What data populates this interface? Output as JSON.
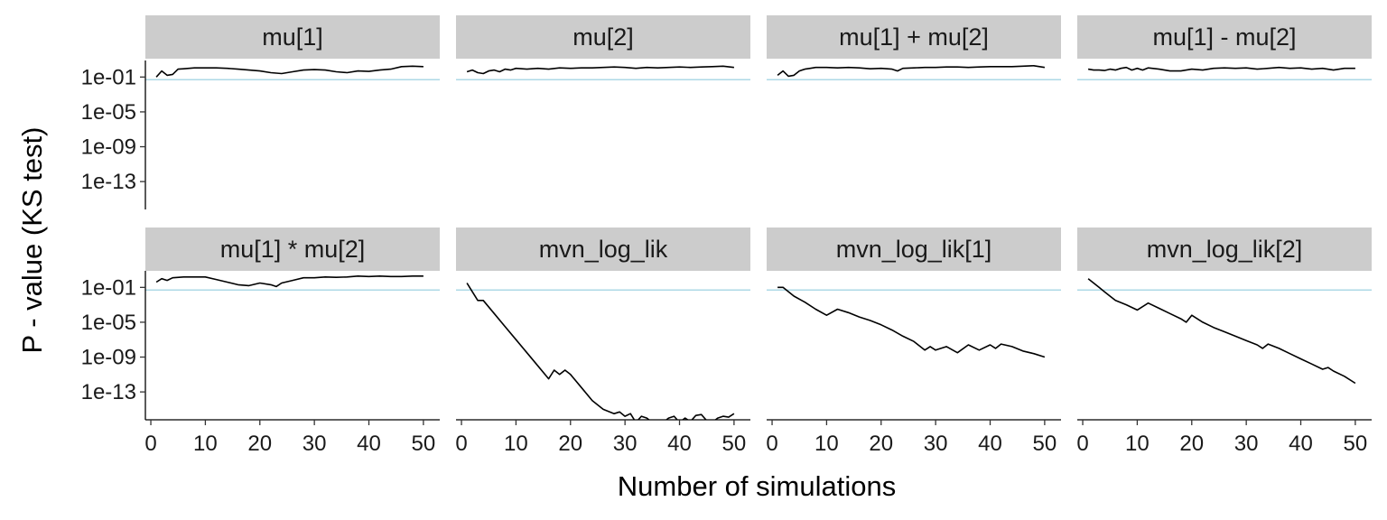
{
  "chart_data": {
    "type": "line",
    "xlabel": "Number of simulations",
    "ylabel": "P - value (KS test)",
    "y_scale": "log10",
    "ylim_log10": [
      -16.2,
      0.9
    ],
    "xlim": [
      -1,
      53
    ],
    "x_ticks": [
      0,
      10,
      20,
      30,
      40,
      50
    ],
    "x_tick_labels": [
      "0",
      "10",
      "20",
      "30",
      "40",
      "50"
    ],
    "y_ticks_log10": [
      -1,
      -5,
      -9,
      -13
    ],
    "y_tick_labels": [
      "1e-01",
      "1e-05",
      "1e-09",
      "1e-13"
    ],
    "reference_line": {
      "p_value": 0.05,
      "color": "#add8e6"
    },
    "line_color": "#000000",
    "strip_color": "#cccccc",
    "grid": false,
    "facets": [
      {
        "title": "mu[1]",
        "points": [
          [
            1,
            -1.0
          ],
          [
            2,
            -0.3
          ],
          [
            3,
            -0.8
          ],
          [
            4,
            -0.7
          ],
          [
            5,
            -0.1
          ],
          [
            6,
            -0.05
          ],
          [
            8,
            0.05
          ],
          [
            10,
            0.05
          ],
          [
            12,
            0.05
          ],
          [
            14,
            0.0
          ],
          [
            16,
            -0.1
          ],
          [
            18,
            -0.2
          ],
          [
            20,
            -0.3
          ],
          [
            22,
            -0.5
          ],
          [
            24,
            -0.6
          ],
          [
            26,
            -0.4
          ],
          [
            28,
            -0.2
          ],
          [
            30,
            -0.15
          ],
          [
            32,
            -0.2
          ],
          [
            34,
            -0.4
          ],
          [
            36,
            -0.5
          ],
          [
            38,
            -0.3
          ],
          [
            40,
            -0.35
          ],
          [
            42,
            -0.2
          ],
          [
            44,
            -0.1
          ],
          [
            46,
            0.2
          ],
          [
            48,
            0.25
          ],
          [
            50,
            0.2
          ]
        ]
      },
      {
        "title": "mu[2]",
        "points": [
          [
            1,
            -0.4
          ],
          [
            2,
            -0.2
          ],
          [
            3,
            -0.5
          ],
          [
            4,
            -0.6
          ],
          [
            5,
            -0.3
          ],
          [
            6,
            -0.2
          ],
          [
            7,
            -0.4
          ],
          [
            8,
            -0.1
          ],
          [
            9,
            -0.2
          ],
          [
            10,
            0.0
          ],
          [
            12,
            -0.1
          ],
          [
            14,
            0.0
          ],
          [
            16,
            -0.1
          ],
          [
            18,
            0.05
          ],
          [
            20,
            0.0
          ],
          [
            22,
            0.05
          ],
          [
            24,
            0.05
          ],
          [
            26,
            0.1
          ],
          [
            28,
            0.15
          ],
          [
            30,
            0.1
          ],
          [
            32,
            0.0
          ],
          [
            34,
            0.1
          ],
          [
            36,
            0.05
          ],
          [
            38,
            0.1
          ],
          [
            40,
            0.15
          ],
          [
            42,
            0.1
          ],
          [
            44,
            0.15
          ],
          [
            46,
            0.2
          ],
          [
            48,
            0.25
          ],
          [
            50,
            0.1
          ]
        ]
      },
      {
        "title": "mu[1] + mu[2]",
        "points": [
          [
            1,
            -0.8
          ],
          [
            2,
            -0.3
          ],
          [
            3,
            -0.9
          ],
          [
            4,
            -0.8
          ],
          [
            5,
            -0.3
          ],
          [
            6,
            -0.1
          ],
          [
            7,
            0.0
          ],
          [
            8,
            0.1
          ],
          [
            10,
            0.1
          ],
          [
            12,
            0.05
          ],
          [
            14,
            0.1
          ],
          [
            16,
            0.05
          ],
          [
            18,
            -0.05
          ],
          [
            20,
            0.0
          ],
          [
            22,
            -0.1
          ],
          [
            23,
            -0.3
          ],
          [
            24,
            0.0
          ],
          [
            26,
            0.05
          ],
          [
            28,
            0.1
          ],
          [
            30,
            0.1
          ],
          [
            32,
            0.15
          ],
          [
            34,
            0.15
          ],
          [
            36,
            0.1
          ],
          [
            38,
            0.15
          ],
          [
            40,
            0.2
          ],
          [
            42,
            0.2
          ],
          [
            44,
            0.2
          ],
          [
            46,
            0.25
          ],
          [
            48,
            0.3
          ],
          [
            50,
            0.1
          ]
        ]
      },
      {
        "title": "mu[1] - mu[2]",
        "points": [
          [
            1,
            -0.1
          ],
          [
            2,
            -0.2
          ],
          [
            3,
            -0.2
          ],
          [
            4,
            -0.25
          ],
          [
            5,
            -0.1
          ],
          [
            6,
            -0.2
          ],
          [
            7,
            0.0
          ],
          [
            8,
            0.1
          ],
          [
            9,
            -0.2
          ],
          [
            10,
            0.0
          ],
          [
            11,
            -0.2
          ],
          [
            12,
            0.05
          ],
          [
            14,
            -0.1
          ],
          [
            16,
            -0.3
          ],
          [
            18,
            -0.3
          ],
          [
            20,
            -0.1
          ],
          [
            22,
            -0.2
          ],
          [
            24,
            0.0
          ],
          [
            26,
            0.05
          ],
          [
            28,
            0.0
          ],
          [
            30,
            0.05
          ],
          [
            32,
            -0.1
          ],
          [
            34,
            0.0
          ],
          [
            36,
            0.1
          ],
          [
            38,
            0.0
          ],
          [
            40,
            0.05
          ],
          [
            42,
            -0.1
          ],
          [
            44,
            0.0
          ],
          [
            46,
            -0.2
          ],
          [
            48,
            0.0
          ],
          [
            50,
            0.0
          ]
        ]
      },
      {
        "title": "mu[1] * mu[2]",
        "points": [
          [
            1,
            -0.4
          ],
          [
            2,
            0.0
          ],
          [
            3,
            -0.2
          ],
          [
            4,
            0.1
          ],
          [
            6,
            0.2
          ],
          [
            8,
            0.2
          ],
          [
            10,
            0.2
          ],
          [
            12,
            -0.1
          ],
          [
            14,
            -0.4
          ],
          [
            16,
            -0.7
          ],
          [
            18,
            -0.8
          ],
          [
            20,
            -0.5
          ],
          [
            22,
            -0.7
          ],
          [
            23,
            -0.9
          ],
          [
            24,
            -0.5
          ],
          [
            26,
            -0.2
          ],
          [
            28,
            0.1
          ],
          [
            30,
            0.1
          ],
          [
            32,
            0.2
          ],
          [
            34,
            0.15
          ],
          [
            36,
            0.2
          ],
          [
            38,
            0.3
          ],
          [
            40,
            0.25
          ],
          [
            42,
            0.3
          ],
          [
            44,
            0.25
          ],
          [
            46,
            0.25
          ],
          [
            48,
            0.3
          ],
          [
            50,
            0.3
          ]
        ]
      },
      {
        "title": "mvn_log_lik",
        "points": [
          [
            1,
            -0.5
          ],
          [
            2,
            -1.5
          ],
          [
            3,
            -2.5
          ],
          [
            4,
            -2.5
          ],
          [
            6,
            -4.0
          ],
          [
            8,
            -5.5
          ],
          [
            10,
            -7.0
          ],
          [
            12,
            -8.5
          ],
          [
            14,
            -10.0
          ],
          [
            16,
            -11.5
          ],
          [
            17,
            -10.5
          ],
          [
            18,
            -11.0
          ],
          [
            19,
            -10.5
          ],
          [
            20,
            -11.0
          ],
          [
            22,
            -12.5
          ],
          [
            24,
            -14.0
          ],
          [
            26,
            -15.0
          ],
          [
            28,
            -15.5
          ],
          [
            29,
            -15.3
          ],
          [
            30,
            -15.8
          ],
          [
            31,
            -15.5
          ],
          [
            32,
            -16.5
          ],
          [
            33,
            -15.8
          ],
          [
            34,
            -16.0
          ],
          [
            35,
            -16.5
          ],
          [
            36,
            -16.3
          ],
          [
            37,
            -16.5
          ],
          [
            38,
            -16.0
          ],
          [
            39,
            -15.8
          ],
          [
            40,
            -16.5
          ],
          [
            41,
            -16.0
          ],
          [
            42,
            -16.4
          ],
          [
            43,
            -15.7
          ],
          [
            44,
            -15.6
          ],
          [
            45,
            -16.3
          ],
          [
            46,
            -16.5
          ],
          [
            47,
            -16.0
          ],
          [
            48,
            -15.8
          ],
          [
            49,
            -15.9
          ],
          [
            50,
            -15.5
          ]
        ]
      },
      {
        "title": "mvn_log_lik[1]",
        "points": [
          [
            1,
            -1.0
          ],
          [
            2,
            -1.0
          ],
          [
            4,
            -2.0
          ],
          [
            6,
            -2.7
          ],
          [
            8,
            -3.5
          ],
          [
            10,
            -4.2
          ],
          [
            12,
            -3.5
          ],
          [
            14,
            -3.9
          ],
          [
            16,
            -4.4
          ],
          [
            18,
            -4.8
          ],
          [
            20,
            -5.3
          ],
          [
            22,
            -5.9
          ],
          [
            24,
            -6.6
          ],
          [
            26,
            -7.2
          ],
          [
            28,
            -8.2
          ],
          [
            29,
            -7.8
          ],
          [
            30,
            -8.2
          ],
          [
            32,
            -7.8
          ],
          [
            34,
            -8.5
          ],
          [
            36,
            -7.6
          ],
          [
            38,
            -8.2
          ],
          [
            40,
            -7.6
          ],
          [
            41,
            -8.0
          ],
          [
            42,
            -7.5
          ],
          [
            44,
            -7.8
          ],
          [
            46,
            -8.3
          ],
          [
            48,
            -8.6
          ],
          [
            50,
            -9.0
          ]
        ]
      },
      {
        "title": "mvn_log_lik[2]",
        "points": [
          [
            1,
            0.0
          ],
          [
            2,
            -0.5
          ],
          [
            3,
            -1.0
          ],
          [
            4,
            -1.5
          ],
          [
            5,
            -2.0
          ],
          [
            6,
            -2.5
          ],
          [
            8,
            -3.0
          ],
          [
            10,
            -3.6
          ],
          [
            12,
            -2.8
          ],
          [
            14,
            -3.4
          ],
          [
            16,
            -4.0
          ],
          [
            18,
            -4.6
          ],
          [
            19,
            -5.0
          ],
          [
            20,
            -4.2
          ],
          [
            22,
            -5.0
          ],
          [
            24,
            -5.6
          ],
          [
            26,
            -6.1
          ],
          [
            28,
            -6.6
          ],
          [
            30,
            -7.1
          ],
          [
            32,
            -7.6
          ],
          [
            33,
            -8.0
          ],
          [
            34,
            -7.5
          ],
          [
            36,
            -8.0
          ],
          [
            38,
            -8.6
          ],
          [
            40,
            -9.2
          ],
          [
            42,
            -9.8
          ],
          [
            44,
            -10.4
          ],
          [
            45,
            -10.2
          ],
          [
            46,
            -10.6
          ],
          [
            48,
            -11.2
          ],
          [
            50,
            -12.0
          ]
        ]
      }
    ]
  }
}
